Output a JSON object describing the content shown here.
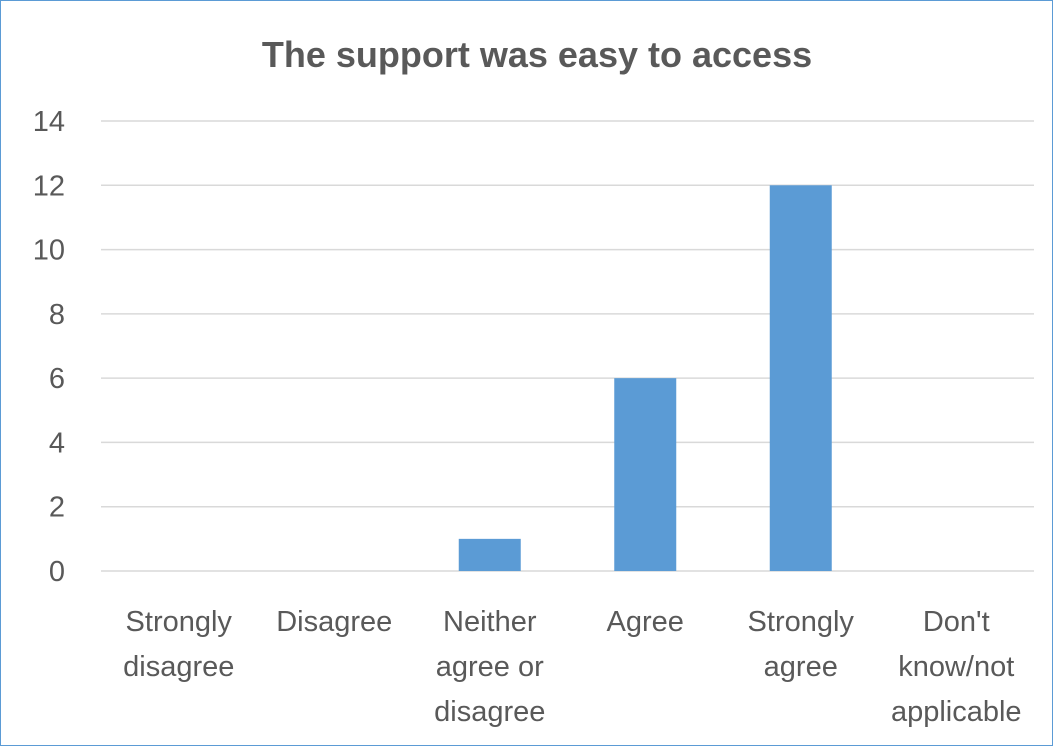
{
  "chart_data": {
    "type": "bar",
    "title": "The support was easy to access",
    "categories": [
      [
        "Strongly",
        "disagree"
      ],
      [
        "Disagree"
      ],
      [
        "Neither",
        "agree or",
        "disagree"
      ],
      [
        "Agree"
      ],
      [
        "Strongly",
        "agree"
      ],
      [
        "Don't",
        "know/not",
        "applicable"
      ]
    ],
    "values": [
      0,
      0,
      1,
      6,
      12,
      0
    ],
    "ylim": [
      0,
      14
    ],
    "yticks": [
      "0",
      "2",
      "4",
      "6",
      "8",
      "10",
      "12",
      "14"
    ],
    "grid": true,
    "legend": "none",
    "bar_color": "#5b9bd5"
  }
}
